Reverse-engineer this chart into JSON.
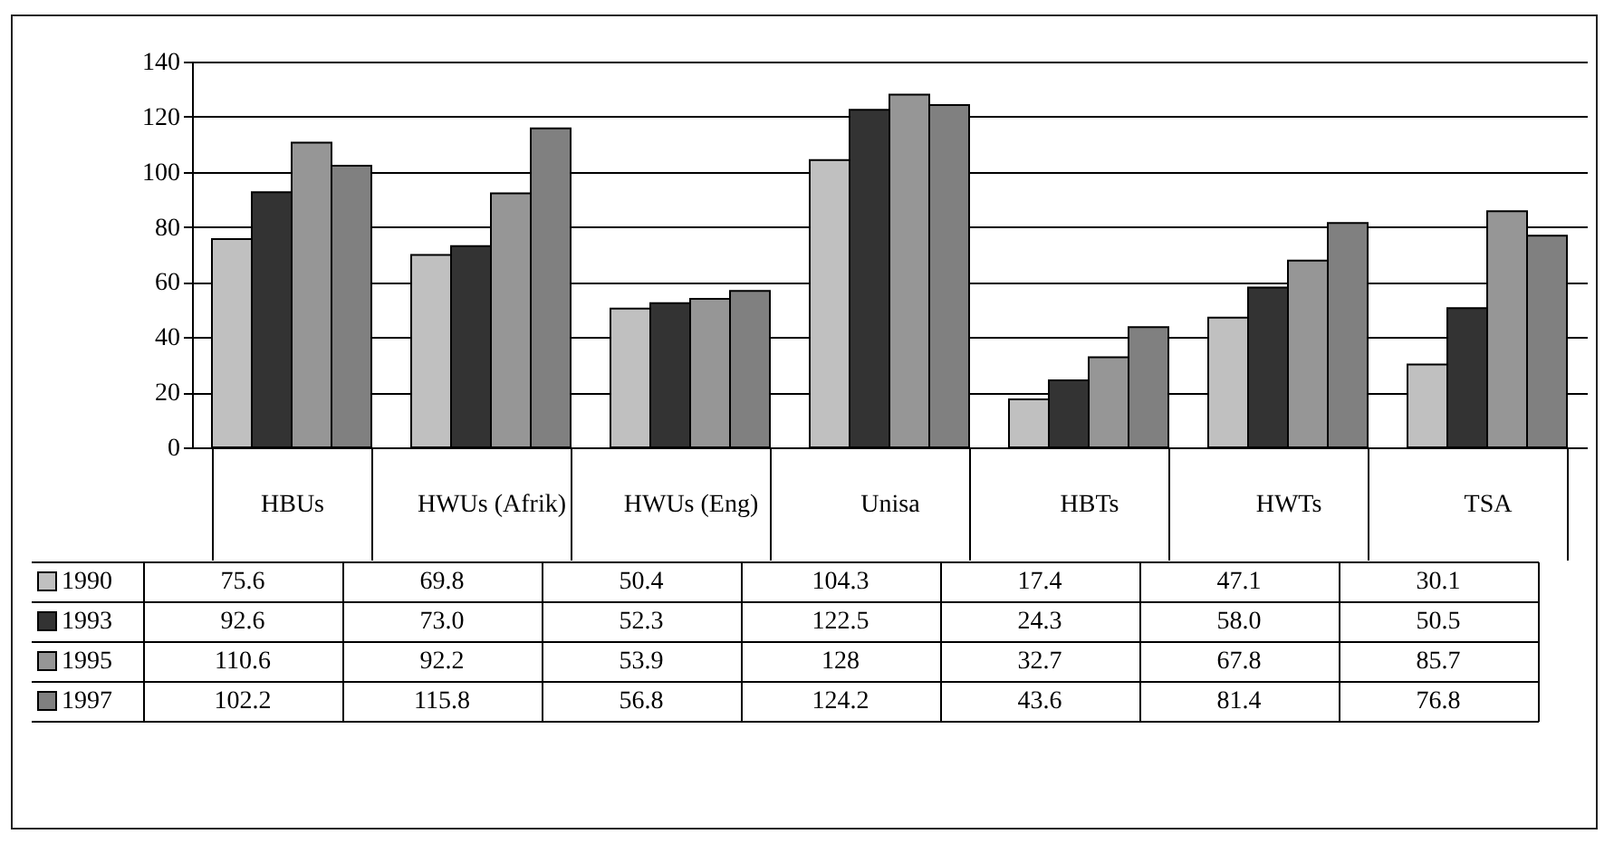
{
  "chart_data": {
    "type": "bar",
    "categories": [
      "HBUs",
      "HWUs (Afrik)",
      "HWUs (Eng)",
      "Unisa",
      "HBTs",
      "HWTs",
      "TSA"
    ],
    "series": [
      {
        "name": "1990",
        "color": "#c0c0c0",
        "values": [
          75.6,
          69.8,
          50.4,
          104.3,
          17.4,
          47.1,
          30.1
        ],
        "value_labels": [
          "75.6",
          "69.8",
          "50.4",
          "104.3",
          "17.4",
          "47.1",
          "30.1"
        ]
      },
      {
        "name": "1993",
        "color": "#333333",
        "values": [
          92.6,
          73.0,
          52.3,
          122.5,
          24.3,
          58.0,
          50.5
        ],
        "value_labels": [
          "92.6",
          "73.0",
          "52.3",
          "122.5",
          "24.3",
          "58.0",
          "50.5"
        ]
      },
      {
        "name": "1995",
        "color": "#969696",
        "values": [
          110.6,
          92.2,
          53.9,
          128,
          32.7,
          67.8,
          85.7
        ],
        "value_labels": [
          "110.6",
          "92.2",
          "53.9",
          "128",
          "32.7",
          "67.8",
          "85.7"
        ]
      },
      {
        "name": "1997",
        "color": "#808080",
        "values": [
          102.2,
          115.8,
          56.8,
          124.2,
          43.6,
          81.4,
          76.8
        ],
        "value_labels": [
          "102.2",
          "115.8",
          "56.8",
          "124.2",
          "43.6",
          "81.4",
          "76.8"
        ]
      }
    ],
    "ylim": [
      0,
      140
    ],
    "yticks": [
      0,
      20,
      40,
      60,
      80,
      100,
      120,
      140
    ],
    "grid": "y",
    "legend": "bottom left"
  }
}
